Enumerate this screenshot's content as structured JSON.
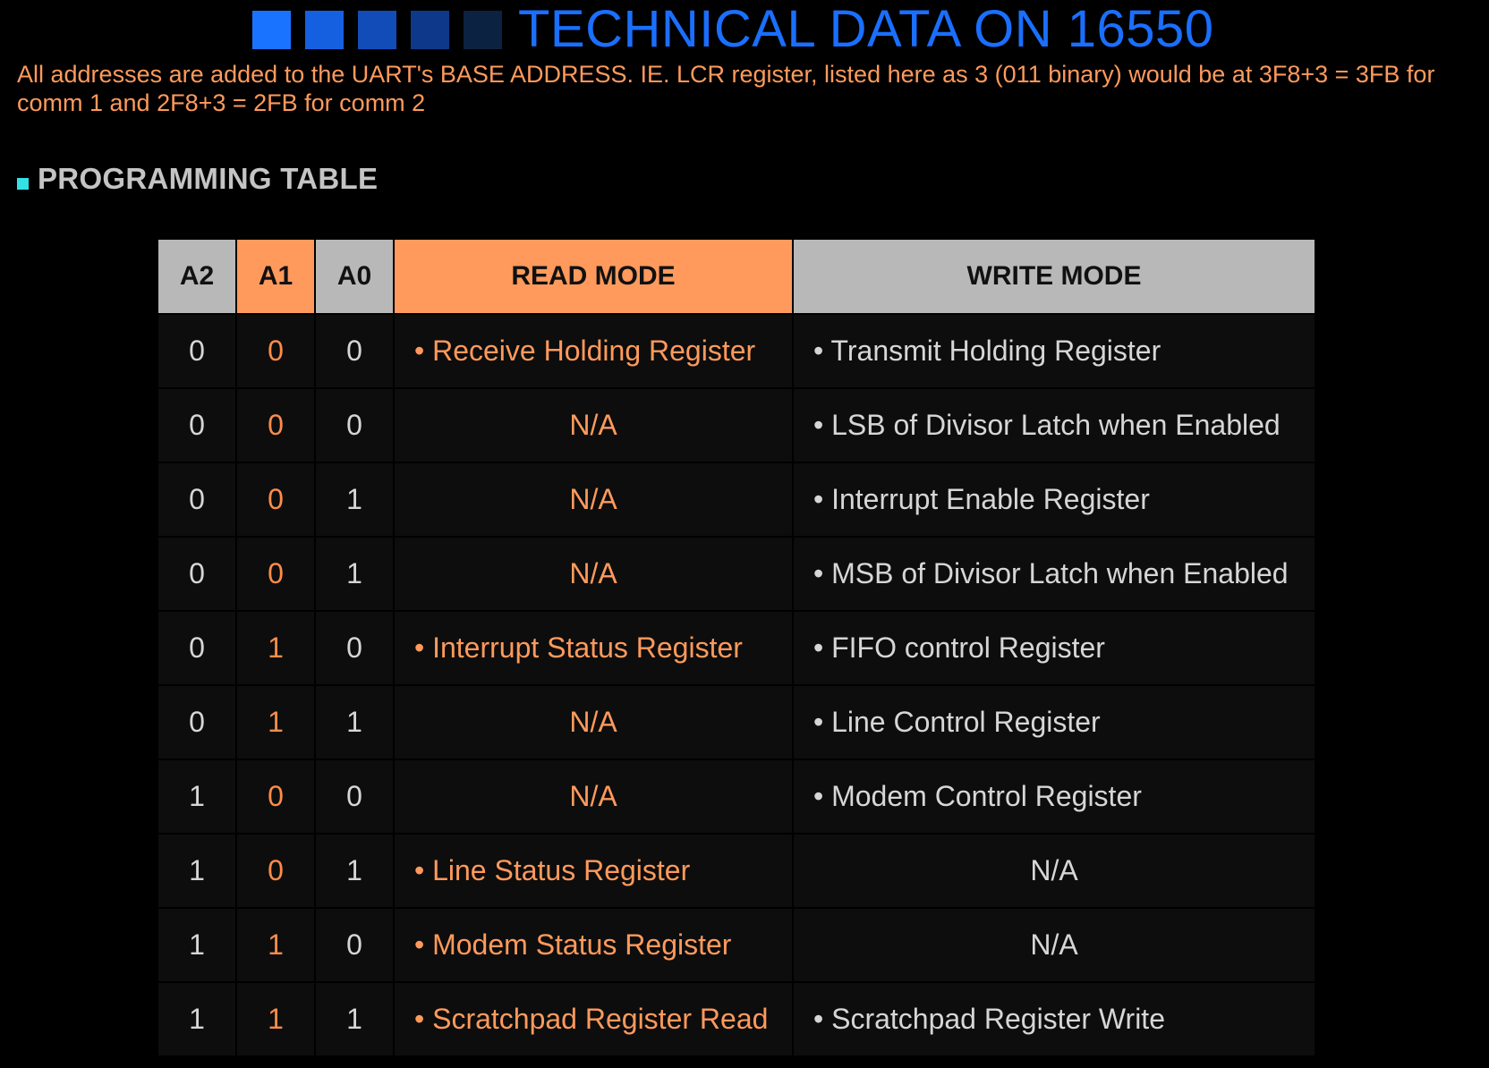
{
  "title": {
    "text": "TECHNICAL DATA ON 16550",
    "squares": [
      "#1a73ff",
      "#1560e0",
      "#124cb8",
      "#0e388a",
      "#0b2340"
    ],
    "color": "#1a6fff"
  },
  "intro": "All addresses are added to the UART's BASE ADDRESS. IE. LCR register, listed here as 3 (011 binary) would be at 3F8+3 = 3FB for comm 1 and 2F8+3 = 2FB for comm 2",
  "section": {
    "title": "PROGRAMMING TABLE",
    "bullet_icon": "square-bullet-icon",
    "bullet_color": "#33e0e6"
  },
  "colors": {
    "header_gray": "#b8b8b8",
    "header_orange": "#ff9a5c",
    "accent_orange": "#ff9a5c"
  },
  "table": {
    "headers": [
      "A2",
      "A1",
      "A0",
      "READ MODE",
      "WRITE MODE"
    ],
    "rows": [
      {
        "a2": "0",
        "a1": "0",
        "a0": "0",
        "read": "• Receive Holding Register",
        "write": "• Transmit Holding Register"
      },
      {
        "a2": "0",
        "a1": "0",
        "a0": "0",
        "read": "N/A",
        "write": "• LSB of Divisor Latch when Enabled"
      },
      {
        "a2": "0",
        "a1": "0",
        "a0": "1",
        "read": "N/A",
        "write": "• Interrupt Enable Register"
      },
      {
        "a2": "0",
        "a1": "0",
        "a0": "1",
        "read": "N/A",
        "write": "• MSB of Divisor Latch when Enabled"
      },
      {
        "a2": "0",
        "a1": "1",
        "a0": "0",
        "read": "• Interrupt Status Register",
        "write": "• FIFO control Register"
      },
      {
        "a2": "0",
        "a1": "1",
        "a0": "1",
        "read": "N/A",
        "write": "• Line Control Register"
      },
      {
        "a2": "1",
        "a1": "0",
        "a0": "0",
        "read": "N/A",
        "write": "• Modem Control Register"
      },
      {
        "a2": "1",
        "a1": "0",
        "a0": "1",
        "read": "• Line Status Register",
        "write": "N/A"
      },
      {
        "a2": "1",
        "a1": "1",
        "a0": "0",
        "read": "• Modem Status Register",
        "write": "N/A"
      },
      {
        "a2": "1",
        "a1": "1",
        "a0": "1",
        "read": "• Scratchpad Register Read",
        "write": "• Scratchpad Register Write"
      }
    ]
  }
}
